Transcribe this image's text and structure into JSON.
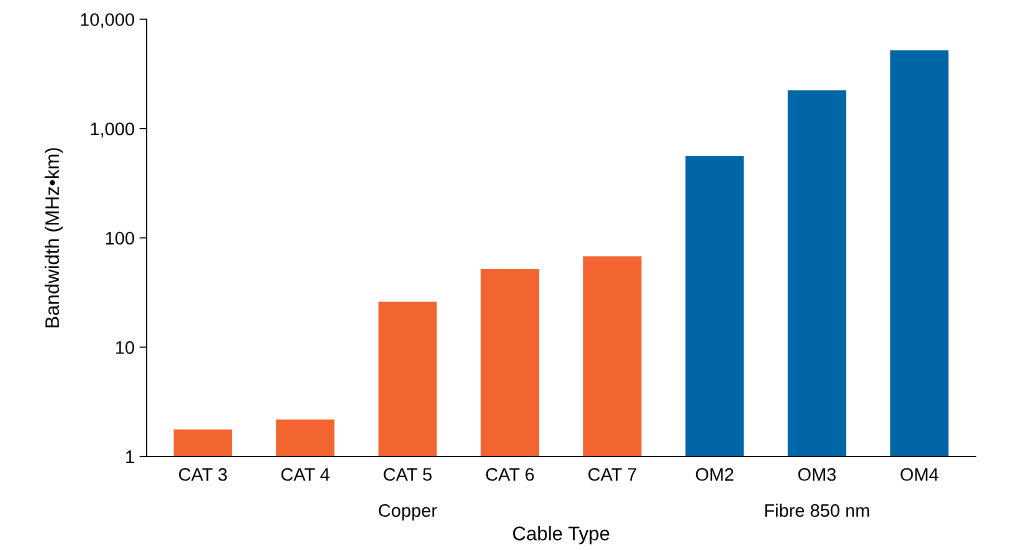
{
  "chart_data": {
    "type": "bar",
    "xlabel": "Cable Type",
    "ylabel": "Bandwidth (MHz•km)",
    "categories": [
      "CAT 3",
      "CAT 4",
      "CAT 5",
      "CAT 6",
      "CAT 7",
      "OM2",
      "OM3",
      "OM4"
    ],
    "values": [
      1.77,
      2.18,
      26,
      52,
      68,
      560,
      2240,
      5200
    ],
    "colors": [
      "#f26531",
      "#f26531",
      "#f26531",
      "#f26531",
      "#f26531",
      "#0066a6",
      "#0066a6",
      "#0066a6"
    ],
    "log": "y",
    "ylim": [
      1,
      10000
    ],
    "yticks": [
      1,
      10,
      100,
      {
        "value": 1000,
        "label": "1,000"
      },
      {
        "value": 10000,
        "label": "10,000"
      }
    ],
    "annotations": [
      "Copper",
      "Fibre 850 nm"
    ],
    "grid": false,
    "legend": false
  }
}
